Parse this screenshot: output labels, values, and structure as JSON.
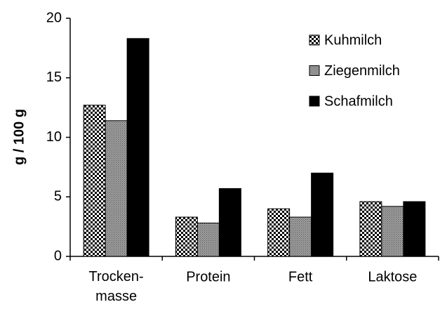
{
  "chart_data": {
    "type": "bar",
    "y_label": "g / 100 g",
    "categories": [
      "Trocken-\nmasse",
      "Protein",
      "Fett",
      "Laktose"
    ],
    "series": [
      {
        "name": "Kuhmilch",
        "color": "#000000",
        "pattern": "checker",
        "values": [
          12.7,
          3.3,
          4.0,
          4.6
        ]
      },
      {
        "name": "Ziegenmilch",
        "color": "#808080",
        "pattern": "dots",
        "values": [
          11.4,
          2.8,
          3.3,
          4.2
        ]
      },
      {
        "name": "Schafmilch",
        "color": "#000000",
        "pattern": "solid",
        "values": [
          18.3,
          5.7,
          7.0,
          4.6
        ]
      }
    ],
    "ylim": [
      0,
      20
    ],
    "yticks": [
      0,
      5,
      10,
      15,
      20
    ],
    "grid": false,
    "legend": "upper right"
  }
}
